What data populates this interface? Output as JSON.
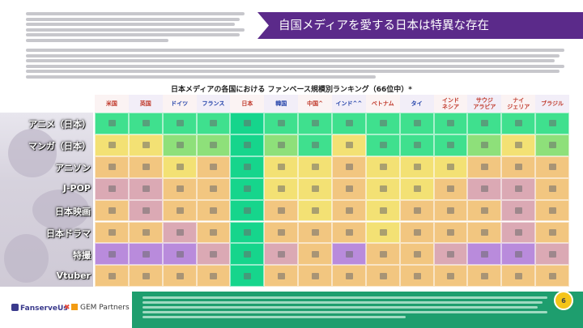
{
  "header": {
    "title": "自国メディアを愛する日本は特異な存在"
  },
  "ranking": {
    "title": "日本メディアの各国における ファンベース規模別ランキング（66位中）*",
    "columns": [
      {
        "label": "米国",
        "tone": "red"
      },
      {
        "label": "英国",
        "tone": "red"
      },
      {
        "label": "ドイツ",
        "tone": "blue"
      },
      {
        "label": "フランス",
        "tone": "blue"
      },
      {
        "label": "日本",
        "tone": "red"
      },
      {
        "label": "韓国",
        "tone": "blue"
      },
      {
        "label": "中国^",
        "tone": "red"
      },
      {
        "label": "インド^^",
        "tone": "blue"
      },
      {
        "label": "ベトナム",
        "tone": "red"
      },
      {
        "label": "タイ",
        "tone": "blue"
      },
      {
        "label": "インド\nネシア",
        "tone": "red"
      },
      {
        "label": "サウジ\nアラビア",
        "tone": "red"
      },
      {
        "label": "ナイ\nジェリア",
        "tone": "red"
      },
      {
        "label": "ブラジル",
        "tone": "red"
      }
    ],
    "rows": [
      {
        "label": "アニメ（日本）"
      },
      {
        "label": "マンガ（日本）"
      },
      {
        "label": "アニソン"
      },
      {
        "label": "J-POP"
      },
      {
        "label": "日本映画"
      },
      {
        "label": "日本ドラマ"
      },
      {
        "label": "特撮"
      },
      {
        "label": "Vtuber"
      }
    ],
    "colors": {
      "G": "#3fe08e",
      "L": "#8ee07a",
      "Y": "#f3e174",
      "O": "#f2c680",
      "P": "#dba9b4",
      "V": "#b98bdc",
      "J": "#16d58c"
    },
    "grid": [
      [
        "G",
        "G",
        "G",
        "G",
        "J",
        "G",
        "G",
        "G",
        "G",
        "G",
        "G",
        "G",
        "G",
        "G"
      ],
      [
        "Y",
        "Y",
        "L",
        "L",
        "J",
        "L",
        "G",
        "Y",
        "G",
        "G",
        "G",
        "L",
        "Y",
        "L"
      ],
      [
        "O",
        "O",
        "Y",
        "O",
        "J",
        "Y",
        "Y",
        "O",
        "Y",
        "Y",
        "Y",
        "O",
        "O",
        "O"
      ],
      [
        "P",
        "P",
        "O",
        "O",
        "J",
        "Y",
        "Y",
        "O",
        "Y",
        "Y",
        "O",
        "P",
        "P",
        "O"
      ],
      [
        "O",
        "P",
        "O",
        "O",
        "J",
        "O",
        "Y",
        "O",
        "Y",
        "O",
        "O",
        "O",
        "P",
        "O"
      ],
      [
        "O",
        "O",
        "P",
        "O",
        "J",
        "O",
        "O",
        "O",
        "Y",
        "O",
        "O",
        "O",
        "P",
        "O"
      ],
      [
        "V",
        "V",
        "V",
        "P",
        "J",
        "P",
        "O",
        "V",
        "O",
        "O",
        "P",
        "V",
        "V",
        "P"
      ],
      [
        "O",
        "O",
        "O",
        "O",
        "J",
        "O",
        "O",
        "O",
        "O",
        "O",
        "O",
        "O",
        "O",
        "O"
      ]
    ]
  },
  "footer": {
    "logo_fanserve": "FanserveUs",
    "logo_x": "✖",
    "logo_gem": "GEM Partners",
    "page_number": "6"
  }
}
